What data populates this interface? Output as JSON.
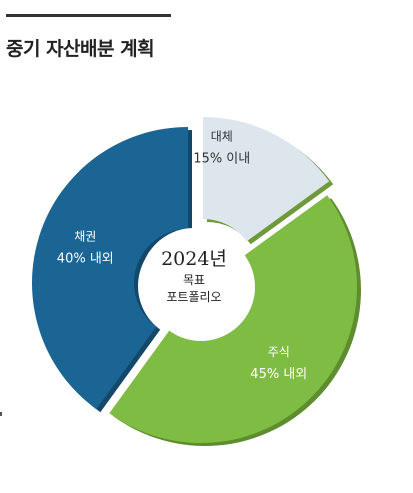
{
  "title": "중기 자산배분 계획",
  "center": {
    "year": "2024년",
    "line1": "목표",
    "line2": "포트폴리오"
  },
  "colors": {
    "bond": "#1b6594",
    "stock": "#7fbc44",
    "alt": "#dde6ec"
  },
  "chart_data": {
    "type": "pie",
    "variant": "donut",
    "categories": [
      "대체",
      "주식",
      "채권"
    ],
    "category_sublabels": [
      "15% 이내",
      "45% 내외",
      "40% 내외"
    ],
    "values": [
      15,
      45,
      40
    ]
  }
}
